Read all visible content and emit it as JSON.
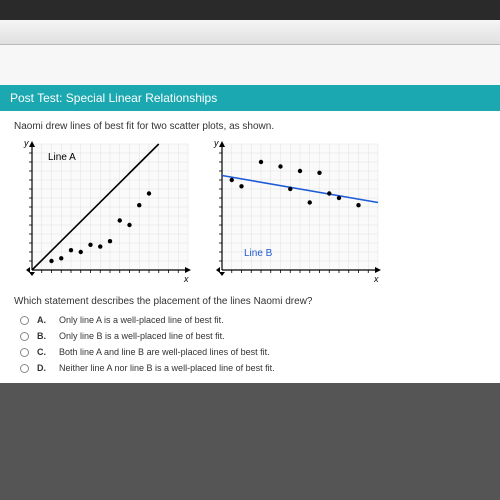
{
  "header": {
    "title": "Post Test: Special Linear Relationships"
  },
  "prompt": "Naomi drew lines of best fit for two scatter plots, as shown.",
  "question": "Which statement describes the placement of the lines Naomi drew?",
  "chartA": {
    "type": "scatter",
    "label": "Line A",
    "line_color": "#000000",
    "point_color": "#000000",
    "grid_color": "#e0e0e0",
    "axis_color": "#000000",
    "bg": "#fafafa",
    "xlim": [
      0,
      16
    ],
    "ylim": [
      0,
      14
    ],
    "line": {
      "x1": 0,
      "y1": 0,
      "x2": 13,
      "y2": 14
    },
    "points": [
      {
        "x": 2,
        "y": 1
      },
      {
        "x": 3,
        "y": 1.3
      },
      {
        "x": 4,
        "y": 2.2
      },
      {
        "x": 5,
        "y": 2
      },
      {
        "x": 6,
        "y": 2.8
      },
      {
        "x": 7,
        "y": 2.6
      },
      {
        "x": 8,
        "y": 3.2
      },
      {
        "x": 9,
        "y": 5.5
      },
      {
        "x": 10,
        "y": 5
      },
      {
        "x": 11,
        "y": 7.2
      },
      {
        "x": 12,
        "y": 8.5
      }
    ]
  },
  "chartB": {
    "type": "scatter",
    "label": "Line B",
    "line_color": "#1e5bd6",
    "label_color": "#1e5bd6",
    "point_color": "#000000",
    "grid_color": "#e0e0e0",
    "axis_color": "#000000",
    "bg": "#fafafa",
    "xlim": [
      0,
      16
    ],
    "ylim": [
      0,
      14
    ],
    "line": {
      "x1": 0,
      "y1": 10.5,
      "x2": 16,
      "y2": 7.5
    },
    "points": [
      {
        "x": 1,
        "y": 10
      },
      {
        "x": 2,
        "y": 9.3
      },
      {
        "x": 4,
        "y": 12
      },
      {
        "x": 6,
        "y": 11.5
      },
      {
        "x": 7,
        "y": 9
      },
      {
        "x": 8,
        "y": 11
      },
      {
        "x": 9,
        "y": 7.5
      },
      {
        "x": 10,
        "y": 10.8
      },
      {
        "x": 11,
        "y": 8.5
      },
      {
        "x": 12,
        "y": 8
      },
      {
        "x": 14,
        "y": 7.2
      }
    ]
  },
  "choices": [
    {
      "letter": "A.",
      "text": "Only line A is a well-placed line of best fit."
    },
    {
      "letter": "B.",
      "text": "Only line B is a well-placed line of best fit."
    },
    {
      "letter": "C.",
      "text": "Both line A and line B are well-placed lines of best fit."
    },
    {
      "letter": "D.",
      "text": "Neither line A nor line B is a well-placed line of best fit."
    }
  ]
}
